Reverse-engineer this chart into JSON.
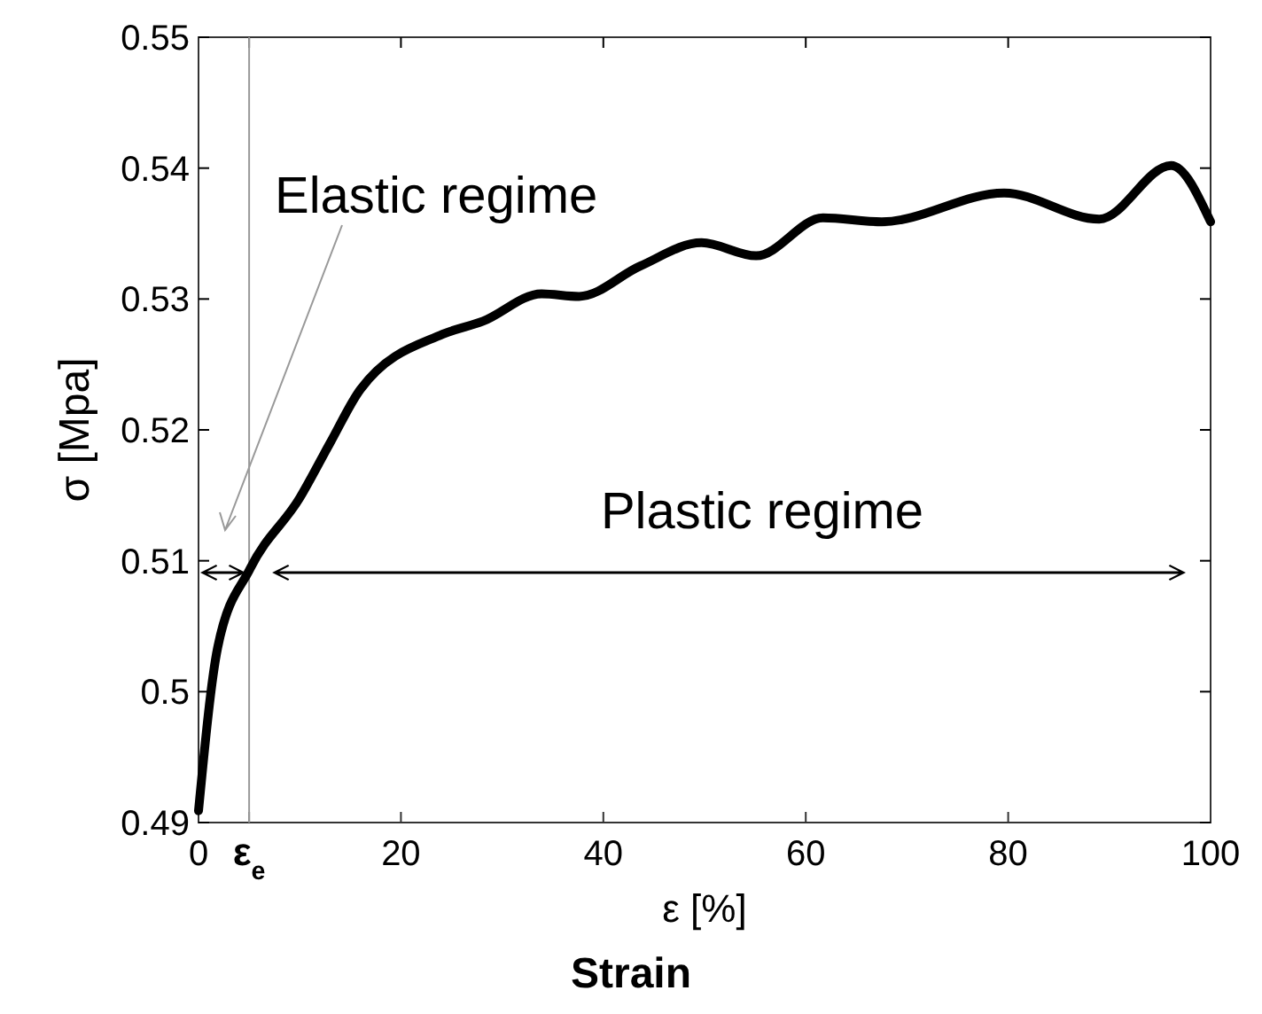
{
  "chart_data": {
    "type": "line",
    "xlabel": "ε [%]",
    "ylabel": "σ [Mpa]",
    "xlim": [
      0,
      100
    ],
    "ylim": [
      0.49,
      0.55
    ],
    "xticks": [
      0,
      {
        "value": 5,
        "label": "ε$_{e}$"
      },
      20,
      40,
      60,
      80,
      100
    ],
    "yticks": [
      0.49,
      0.5,
      0.51,
      0.52,
      0.53,
      0.54,
      0.55
    ],
    "grid": false,
    "marker": "none",
    "line_style": "solid",
    "ref_lines": [
      {
        "axis": "x",
        "value": 5,
        "label": null,
        "color": "#999999"
      }
    ],
    "annotations": [
      "Elastic regime",
      "Plastic regime",
      "Strain"
    ],
    "series": [
      {
        "color": "#000000",
        "x": [
          0,
          1.9,
          5.1,
          10,
          13,
          16,
          24.1,
          28.1,
          33.9,
          37.6,
          43.6,
          49.7,
          55.1,
          61.7,
          67.5,
          79.6,
          89,
          96.1,
          100
        ],
        "values": [
          0.4909,
          0.5034,
          0.5094,
          0.5148,
          0.519,
          0.5231,
          0.5273,
          0.5283,
          0.5304,
          0.5302,
          0.5325,
          0.5343,
          0.5333,
          0.5362,
          0.5359,
          0.5381,
          0.5361,
          0.5402,
          0.5359
        ]
      }
    ]
  }
}
